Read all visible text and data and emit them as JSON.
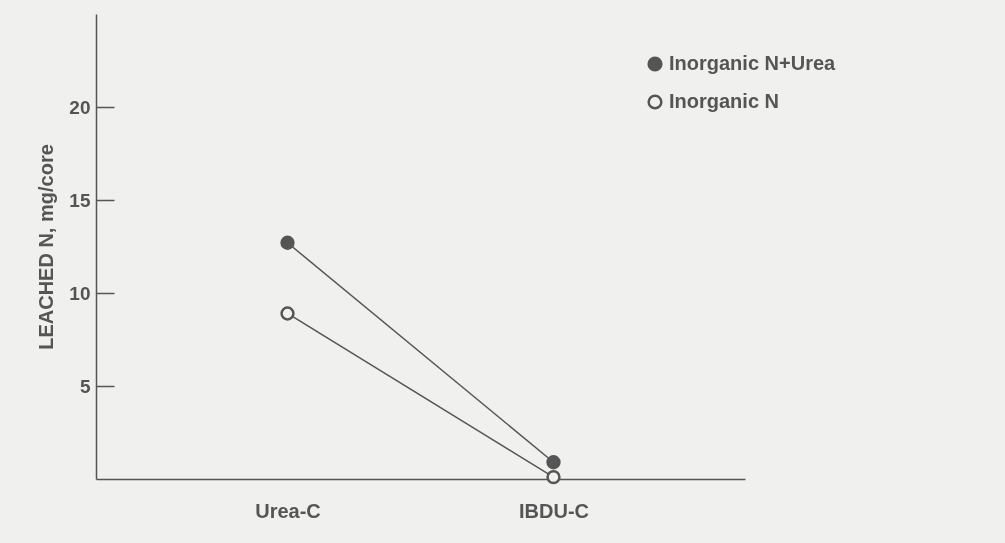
{
  "chart_data": {
    "type": "line",
    "ylabel": "LEACHED N, mg/core",
    "categories": [
      "Urea-C",
      "IBDU-C"
    ],
    "ylim": [
      0,
      25
    ],
    "yticks": [
      5,
      10,
      15,
      20
    ],
    "marker": "circle",
    "legend": "top right",
    "grid": false,
    "series": [
      {
        "name": "Inorganic N+Urea",
        "color": "#555555",
        "values": [
          12.7,
          0.9
        ]
      },
      {
        "name": "Inorganic N",
        "color": "#555555",
        "values": [
          8.9,
          0.1
        ]
      }
    ]
  }
}
